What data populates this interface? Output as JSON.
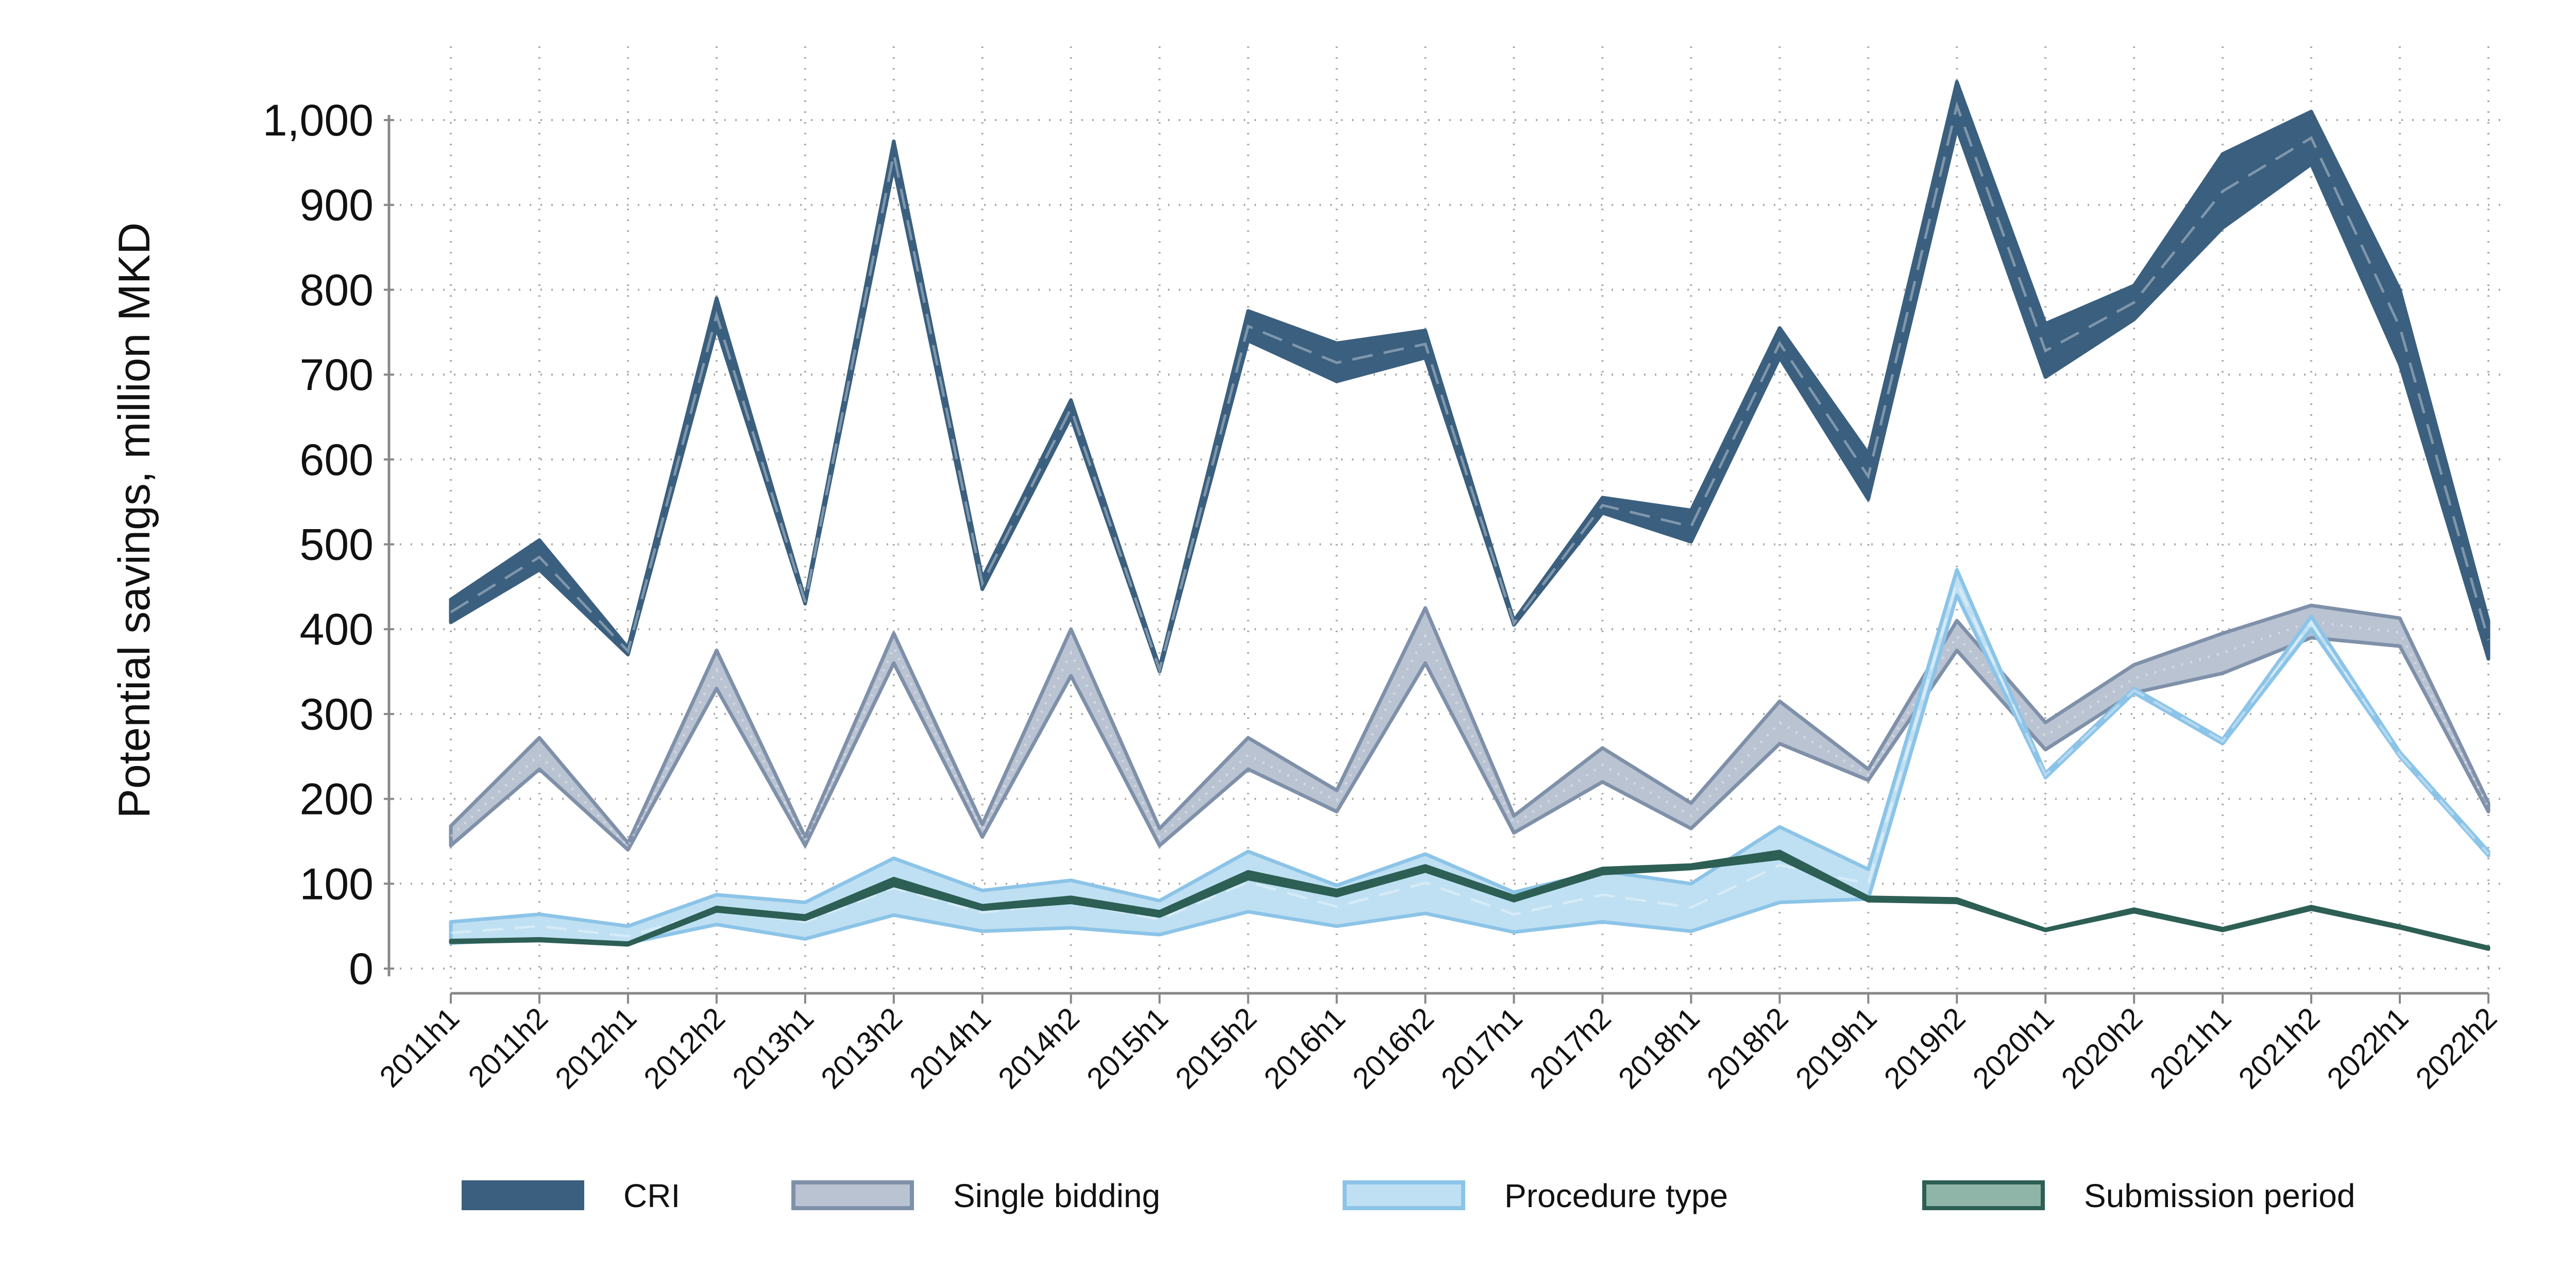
{
  "chart_data": {
    "type": "area",
    "ylabel": "Potential savings, million MKD",
    "xlabel": "",
    "ylim": [
      0,
      1000
    ],
    "yticks": [
      0,
      100,
      200,
      300,
      400,
      500,
      600,
      700,
      800,
      900,
      1000
    ],
    "ytick_labels": [
      "0",
      "100",
      "200",
      "300",
      "400",
      "500",
      "600",
      "700",
      "800",
      "900",
      "1,000"
    ],
    "grid": true,
    "legend_position": "bottom",
    "categories": [
      "2011h1",
      "2011h2",
      "2012h1",
      "2012h2",
      "2013h1",
      "2013h2",
      "2014h1",
      "2014h2",
      "2015h1",
      "2015h2",
      "2016h1",
      "2016h2",
      "2017h1",
      "2017h2",
      "2018h1",
      "2018h2",
      "2019h1",
      "2019h2",
      "2020h1",
      "2020h2",
      "2021h1",
      "2021h2",
      "2022h1",
      "2022h2"
    ],
    "series": [
      {
        "name": "CRI",
        "fill": "#3b5f7e",
        "stroke": "#3b5f7e",
        "low": [
          408,
          470,
          370,
          755,
          430,
          945,
          447,
          650,
          350,
          740,
          692,
          720,
          405,
          537,
          503,
          720,
          553,
          990,
          697,
          765,
          873,
          948,
          712,
          365
        ],
        "high": [
          435,
          505,
          378,
          790,
          435,
          975,
          460,
          670,
          355,
          775,
          737,
          752,
          410,
          555,
          540,
          755,
          607,
          1045,
          760,
          805,
          960,
          1010,
          800,
          410
        ],
        "mid": [
          420,
          485,
          374,
          770,
          432,
          960,
          454,
          660,
          352,
          757,
          714,
          736,
          407,
          546,
          521,
          737,
          580,
          1017,
          728,
          785,
          916,
          979,
          756,
          387
        ]
      },
      {
        "name": "Single bidding",
        "fill": "#b9c3d2",
        "stroke": "#7f90a9",
        "low": [
          145,
          235,
          140,
          330,
          145,
          360,
          155,
          345,
          145,
          235,
          185,
          360,
          160,
          220,
          165,
          265,
          222,
          375,
          258,
          325,
          348,
          390,
          380,
          185
        ],
        "high": [
          168,
          272,
          148,
          375,
          155,
          395,
          170,
          400,
          165,
          272,
          210,
          425,
          180,
          260,
          195,
          315,
          235,
          410,
          290,
          358,
          395,
          428,
          413,
          195
        ],
        "mid": [
          156,
          252,
          144,
          352,
          150,
          378,
          162,
          372,
          155,
          252,
          198,
          392,
          170,
          240,
          180,
          290,
          228,
          392,
          274,
          342,
          372,
          409,
          396,
          190
        ]
      },
      {
        "name": "Procedure type",
        "fill": "#bfe0f2",
        "stroke": "#8cc4e8",
        "low": [
          30,
          35,
          30,
          52,
          35,
          63,
          44,
          48,
          40,
          67,
          50,
          65,
          43,
          55,
          44,
          78,
          82,
          440,
          225,
          325,
          265,
          400,
          250,
          133
        ],
        "high": [
          55,
          64,
          50,
          87,
          78,
          130,
          92,
          104,
          80,
          138,
          98,
          135,
          90,
          115,
          100,
          167,
          117,
          470,
          230,
          330,
          270,
          415,
          255,
          138
        ],
        "mid": [
          42,
          50,
          38,
          69,
          55,
          95,
          66,
          78,
          58,
          102,
          73,
          101,
          64,
          87,
          72,
          122,
          100,
          455,
          228,
          328,
          268,
          408,
          252,
          135
        ]
      },
      {
        "name": "Submission period",
        "fill": "#8fb5a8",
        "stroke": "#2d5f55",
        "low": [
          31,
          33,
          28,
          68,
          58,
          98,
          70,
          78,
          62,
          106,
          86,
          115,
          80,
          112,
          118,
          130,
          80,
          78,
          45,
          67,
          45,
          70,
          48,
          23
        ],
        "high": [
          33,
          35,
          30,
          72,
          62,
          106,
          74,
          84,
          67,
          114,
          92,
          121,
          85,
          118,
          122,
          138,
          84,
          82,
          46,
          70,
          47,
          73,
          50,
          25
        ],
        "mid": [
          32,
          34,
          29,
          70,
          60,
          102,
          72,
          81,
          64,
          110,
          89,
          118,
          82,
          115,
          120,
          134,
          82,
          80,
          45,
          68,
          46,
          72,
          49,
          24
        ]
      }
    ]
  }
}
